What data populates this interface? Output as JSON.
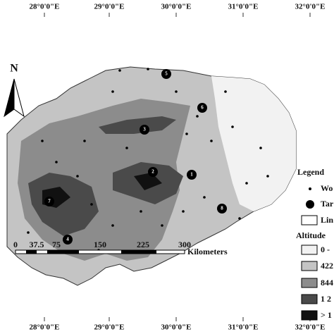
{
  "graticule_top": [
    "28°0'0\"E",
    "29°0'0\"E",
    "30°0'0\"E",
    "31°0'0\"E",
    "32°0'0\"E"
  ],
  "graticule_bottom": [
    "28°0'0\"E",
    "29°0'0\"E",
    "30°0'0\"E",
    "31°0'0\"E",
    "32°0'0\"E"
  ],
  "north_label": "N",
  "scale_bar": {
    "labels": [
      "0",
      "37.5",
      "75",
      "150",
      "225",
      "300"
    ],
    "unit": "Kilometers"
  },
  "legend": {
    "title": "Legend",
    "items": [
      "Wo",
      "Tar",
      "Lin"
    ],
    "altitude_title": "Altitude",
    "altitude_classes": [
      "0 -",
      "422",
      "844",
      "1 2",
      "> 1"
    ]
  },
  "targets": [
    "1",
    "2",
    "3",
    "4",
    "5",
    "6",
    "7",
    "8"
  ]
}
